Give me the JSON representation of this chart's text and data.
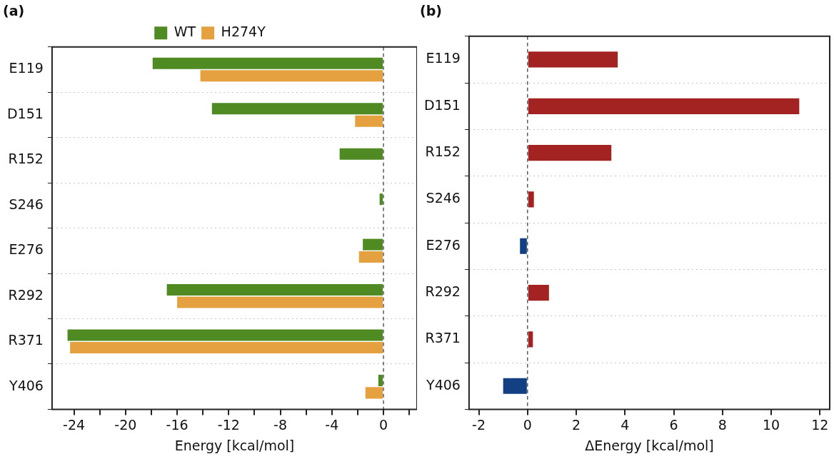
{
  "chart_data": [
    {
      "type": "bar",
      "title": "(a)",
      "orientation": "horizontal",
      "xlabel": "Energy [kcal/mol]",
      "categories": [
        "E119",
        "D151",
        "R152",
        "S246",
        "E276",
        "R292",
        "R371",
        "Y406"
      ],
      "series": [
        {
          "name": "WT",
          "color": "#4f8a23",
          "values": [
            -17.9,
            -13.3,
            -3.4,
            -0.3,
            -1.6,
            -16.8,
            -24.5,
            -0.4
          ]
        },
        {
          "name": "H274Y",
          "color": "#e5a13f",
          "values": [
            -14.2,
            -2.2,
            null,
            null,
            -1.9,
            -16.0,
            -24.3,
            -1.4
          ]
        }
      ],
      "xlim": [
        -25.7,
        2.6
      ],
      "xticks": [
        -24,
        {
          "value": -22,
          "label": null
        },
        -20,
        {
          "value": -18,
          "label": null
        },
        -16,
        {
          "value": -14,
          "label": null
        },
        -12,
        {
          "value": -10,
          "label": null
        },
        -8,
        {
          "value": -6,
          "label": null
        },
        -4,
        {
          "value": -2,
          "label": null
        },
        0,
        {
          "value": 2,
          "label": null
        }
      ],
      "grid": "y",
      "legend": "top",
      "ref_lines": [
        {
          "axis": "x",
          "value": 0,
          "line_style": "dashed"
        }
      ]
    },
    {
      "type": "bar",
      "title": "(b)",
      "orientation": "horizontal",
      "xlabel": "ΔEnergy [kcal/mol]",
      "categories": [
        "E119",
        "D151",
        "R152",
        "S246",
        "E276",
        "R292",
        "R371",
        "Y406"
      ],
      "values": [
        3.7,
        11.15,
        3.44,
        0.26,
        -0.31,
        0.88,
        0.22,
        -1.0
      ],
      "colors": [
        "#a32323",
        "#a32323",
        "#a32323",
        "#a32323",
        "#133f83",
        "#a32323",
        "#a32323",
        "#133f83"
      ],
      "xlim": [
        -2.4,
        12.4
      ],
      "xticks": [
        -2,
        0,
        2,
        4,
        6,
        8,
        10,
        12
      ],
      "grid": "y",
      "ref_lines": [
        {
          "axis": "x",
          "value": 0,
          "line_style": "dashed"
        }
      ]
    }
  ]
}
